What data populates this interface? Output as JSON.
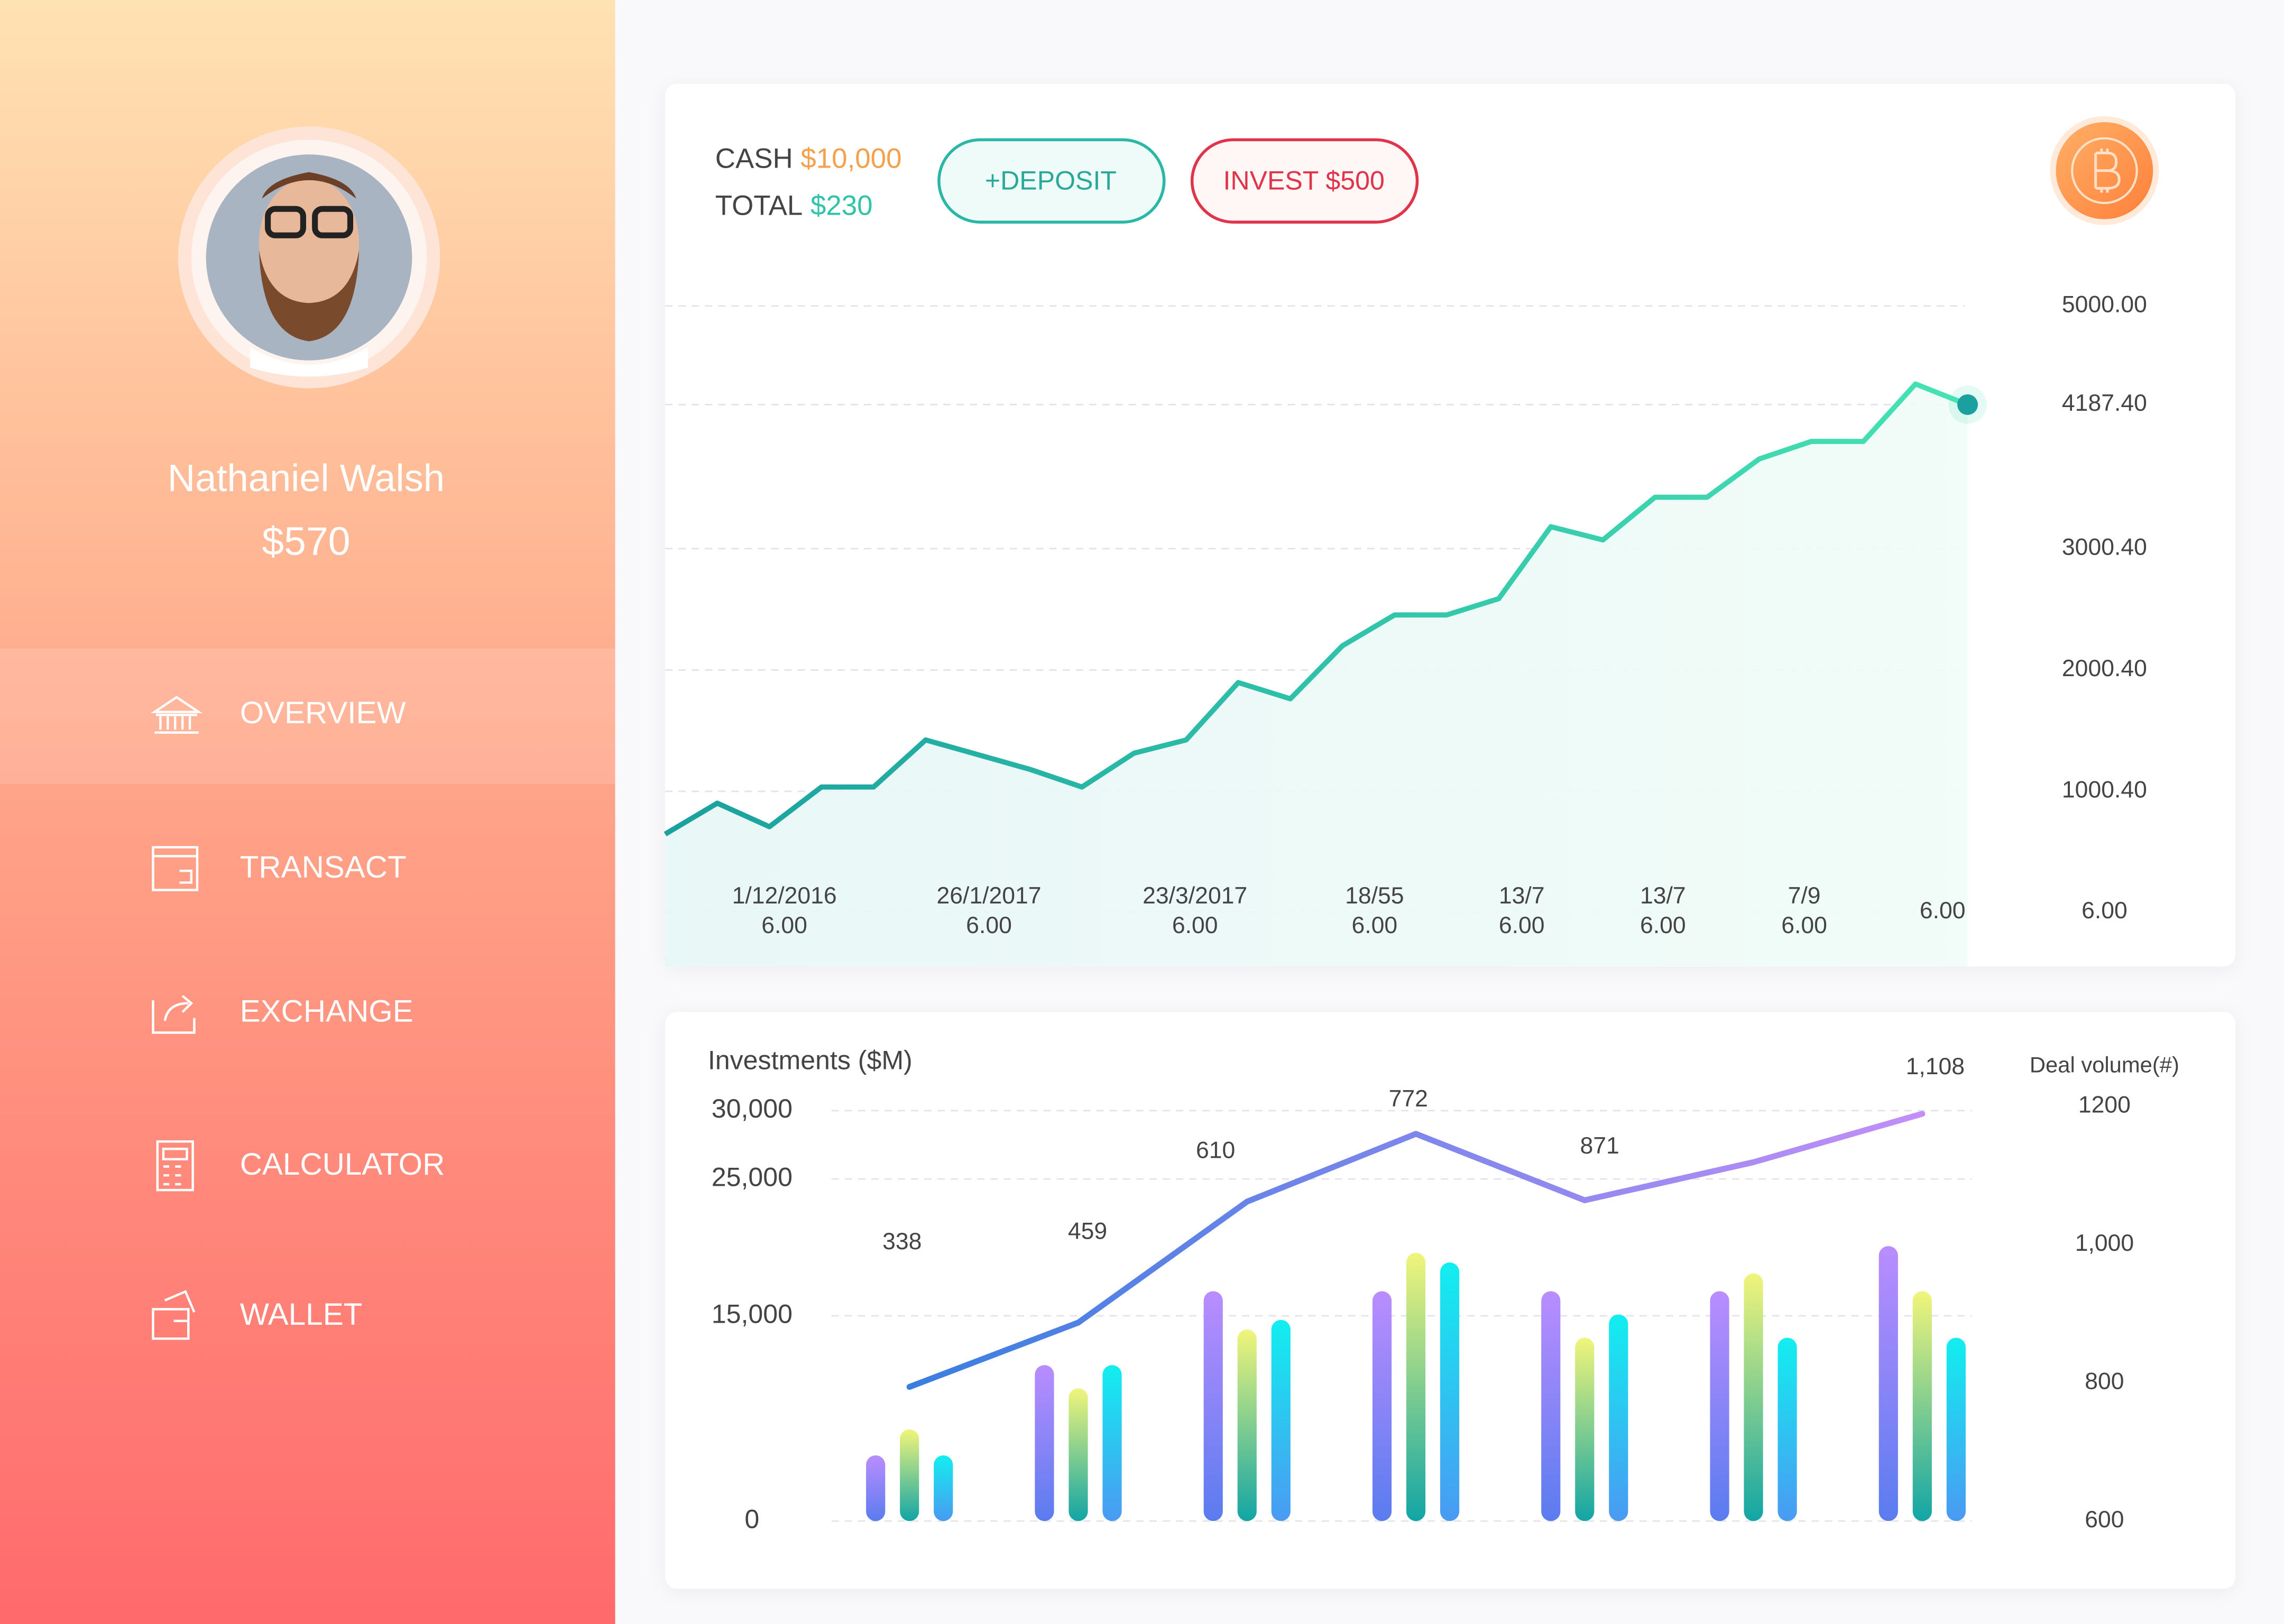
{
  "sidebar": {
    "name": "Nathaniel Walsh",
    "balance": "$570",
    "menu": [
      "OVERVIEW",
      "TRANSACT",
      "EXCHANGE",
      "CALCULATOR",
      "WALLET"
    ]
  },
  "header": {
    "cash_label": "CASH",
    "cash": "$10,000",
    "total_label": "TOTAL",
    "total": "$230",
    "deposit": "+DEPOSIT",
    "invest": "INVEST $500"
  },
  "chart_data": [
    {
      "type": "line",
      "values": [
        648,
        903,
        709,
        1036,
        1036,
        1424,
        1303,
        1182,
        1036,
        1315,
        1424,
        1897,
        1763,
        2200,
        2454,
        2454,
        2588,
        3181,
        3072,
        3424,
        3424,
        3739,
        3884,
        3884,
        4357,
        4187
      ],
      "color": [
        "#1aa09e",
        "#46e3b4"
      ],
      "ylim": [
        6,
        5000
      ],
      "yticks": [
        {
          "value": 5000,
          "label": "5000.00"
        },
        {
          "value": 4187.4,
          "label": "4187.40"
        },
        {
          "value": 3000.4,
          "label": "3000.40"
        },
        {
          "value": 2000.4,
          "label": "2000.40"
        },
        {
          "value": 1000.4,
          "label": "1000.40"
        },
        {
          "value": 6,
          "label": "6.00"
        }
      ],
      "x_labels": [
        {
          "date": "1/12/2016",
          "time": "6.00"
        },
        {
          "date": "26/1/2017",
          "time": "6.00"
        },
        {
          "date": "23/3/2017",
          "time": "6.00"
        },
        {
          "date": "18/55",
          "time": "6.00"
        },
        {
          "date": "13/7",
          "time": "6.00"
        },
        {
          "date": "13/7",
          "time": "6.00"
        },
        {
          "date": "7/9",
          "time": "6.00"
        },
        {
          "time": "6.00"
        }
      ],
      "grid": true
    },
    {
      "type": "bar",
      "title": "Investments ($M)",
      "y2_title": "Deal volume(#)",
      "categories": [
        null,
        null,
        null,
        null,
        null,
        null,
        null
      ],
      "series": [
        {
          "color": [
            "#b98dff",
            "#5a7cef"
          ],
          "values": [
            4800,
            11400,
            16800,
            16800,
            16800,
            16800,
            20100
          ]
        },
        {
          "color": [
            "#f1f57a",
            "#12a5a5"
          ],
          "values": [
            6700,
            9700,
            14000,
            19600,
            13400,
            18100,
            16800
          ]
        },
        {
          "color": [
            "#12eef0",
            "#4a9af2"
          ],
          "values": [
            4800,
            11400,
            14700,
            18900,
            15100,
            13400,
            13400
          ]
        },
        {
          "type": "line",
          "axis": "y2",
          "color": [
            "#3a7ee0",
            "#c28ff8"
          ],
          "values": [
            794,
            887,
            1062,
            1160,
            1064,
            1119,
            1189
          ]
        }
      ],
      "annotations": [
        "338",
        "459",
        "610",
        "772",
        "871",
        "1,108"
      ],
      "ylim": [
        0,
        30000
      ],
      "yticks": [
        {
          "value": 30000,
          "label": "30,000"
        },
        {
          "value": 25000,
          "label": "25,000"
        },
        {
          "value": 15000,
          "label": "15,000"
        },
        0
      ],
      "y2lim": [
        600,
        1200
      ],
      "y2ticks": [
        1200,
        {
          "value": 1000,
          "label": "1,000"
        },
        800,
        600
      ],
      "grid": true
    }
  ]
}
